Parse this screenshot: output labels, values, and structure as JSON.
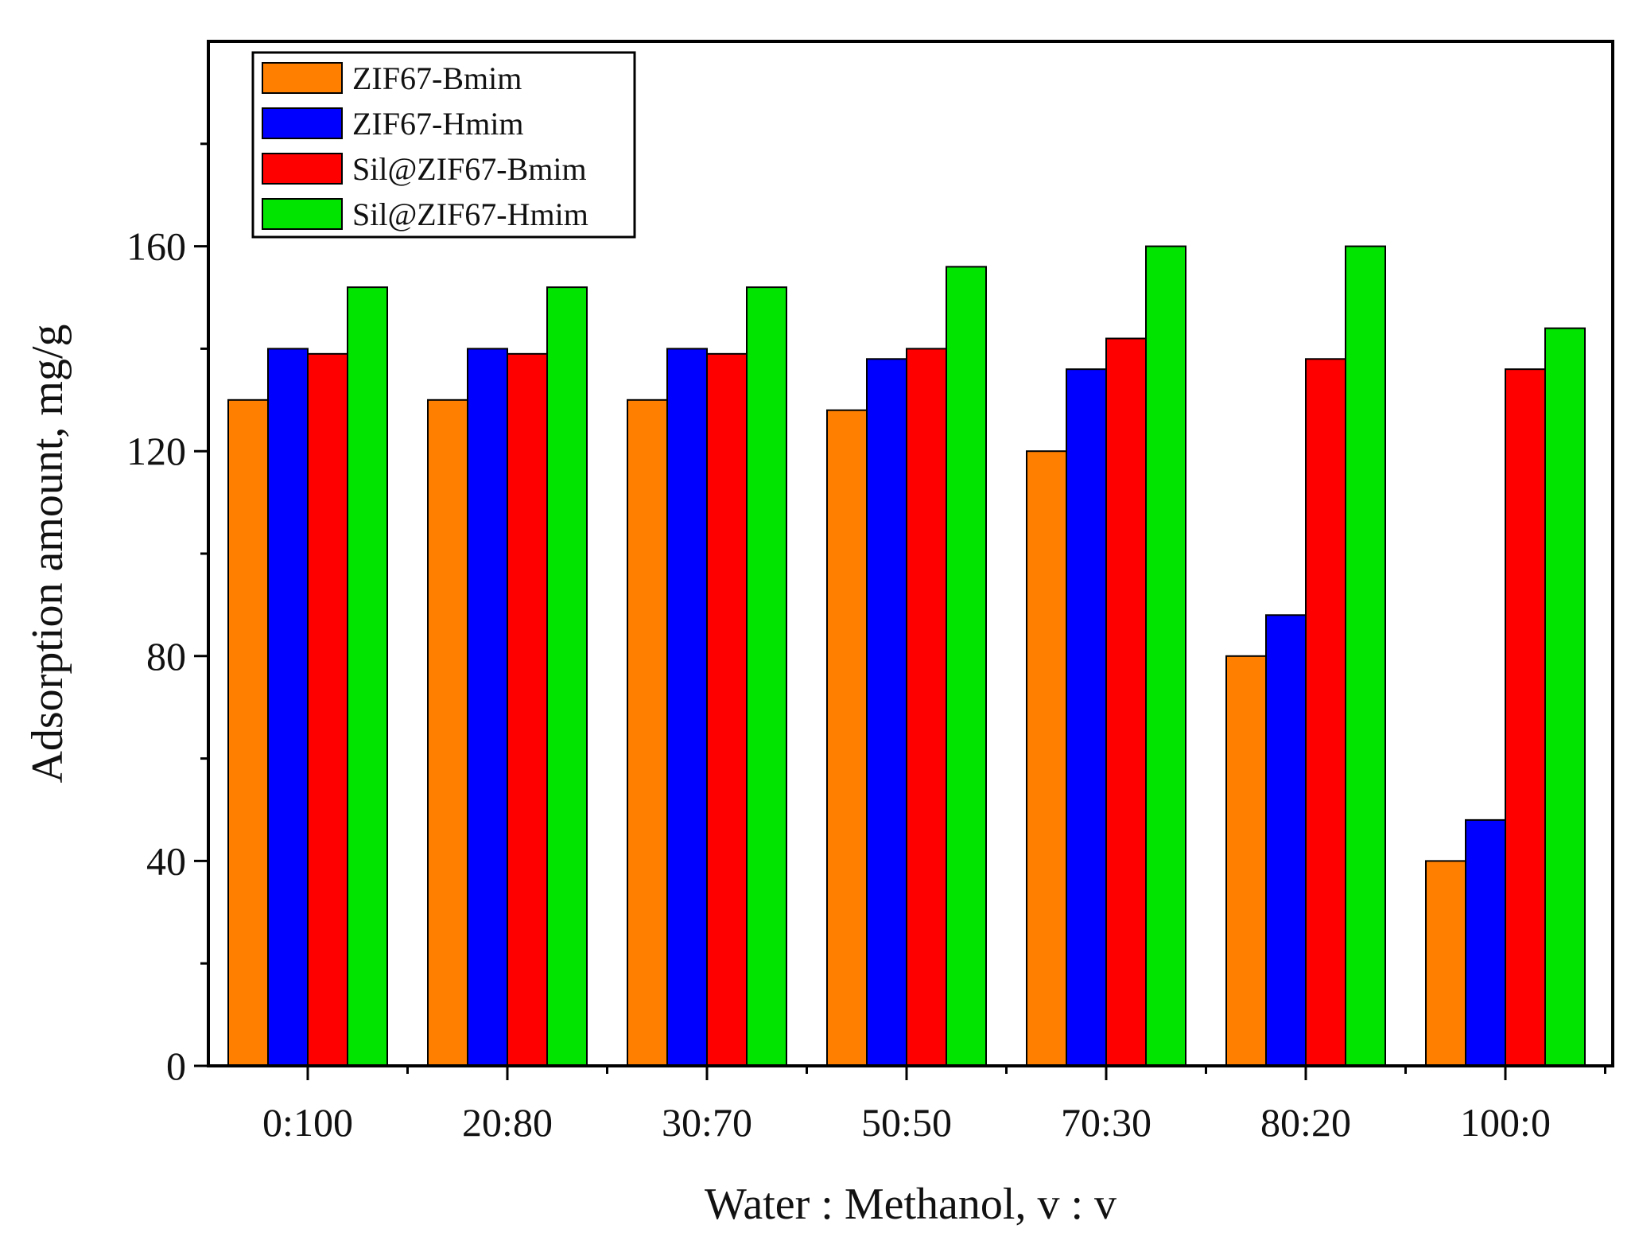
{
  "chart_data": {
    "type": "bar",
    "title": "",
    "xlabel": "Water : Methanol, v : v",
    "ylabel": "Adsorption amount, mg/g",
    "ylim": [
      0,
      200
    ],
    "y_ticks": [
      0,
      40,
      80,
      120,
      160
    ],
    "y_minor_ticks": [
      20,
      60,
      100,
      140,
      180
    ],
    "grid": false,
    "legend_position": "top-left",
    "categories": [
      "0:100",
      "20:80",
      "30:70",
      "50:50",
      "70:30",
      "80:20",
      "100:0"
    ],
    "series": [
      {
        "name": "ZIF67-Bmim",
        "color": "#ff8000",
        "values": [
          130,
          130,
          130,
          128,
          120,
          80,
          40
        ]
      },
      {
        "name": "ZIF67-Hmim",
        "color": "#0000ff",
        "values": [
          140,
          140,
          140,
          138,
          136,
          88,
          48
        ]
      },
      {
        "name": "Sil@ZIF67-Bmim",
        "color": "#ff0000",
        "values": [
          139,
          139,
          139,
          140,
          142,
          138,
          136
        ]
      },
      {
        "name": "Sil@ZIF67-Hmim",
        "color": "#00e400",
        "values": [
          152,
          152,
          152,
          156,
          160,
          160,
          144
        ]
      }
    ]
  }
}
